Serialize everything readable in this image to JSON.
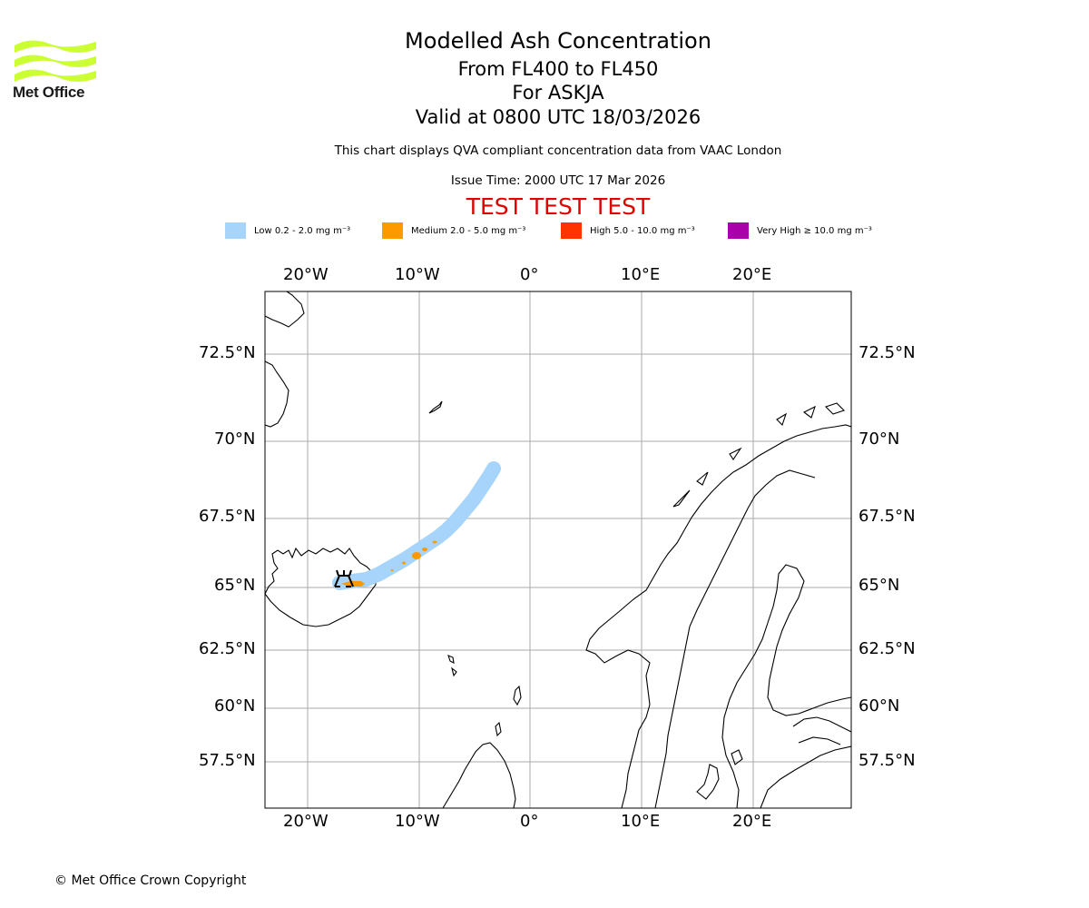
{
  "branding": {
    "logo_text": "Met Office",
    "copyright": "© Met Office Crown Copyright",
    "logo_color": "#ccff33"
  },
  "header": {
    "title": "Modelled Ash Concentration",
    "level_range": "From FL400 to FL450",
    "volcano": "For ASKJA",
    "valid_time": "Valid at 0800 UTC 18/03/2026",
    "description": "This chart displays QVA compliant concentration data from VAAC London",
    "issue_time": "Issue Time: 2000 UTC 17 Mar 2026",
    "test_banner": "TEST TEST TEST"
  },
  "legend": [
    {
      "label": "Low 0.2 - 2.0 mg m⁻³",
      "color": "#a6d4fa"
    },
    {
      "label": "Medium 2.0 - 5.0 mg m⁻³",
      "color": "#ff9900"
    },
    {
      "label": "High 5.0 - 10.0 mg m⁻³",
      "color": "#ff3300"
    },
    {
      "label": "Very High  ≥  10.0 mg m⁻³",
      "color": "#aa00aa"
    }
  ],
  "map": {
    "longitude_ticks": [
      "20°W",
      "10°W",
      "0°",
      "10°E",
      "20°E"
    ],
    "latitude_ticks": [
      "72.5°N",
      "70°N",
      "67.5°N",
      "65°N",
      "62.5°N",
      "60°N",
      "57.5°N"
    ],
    "gridline_color": "#aaaaaa"
  }
}
